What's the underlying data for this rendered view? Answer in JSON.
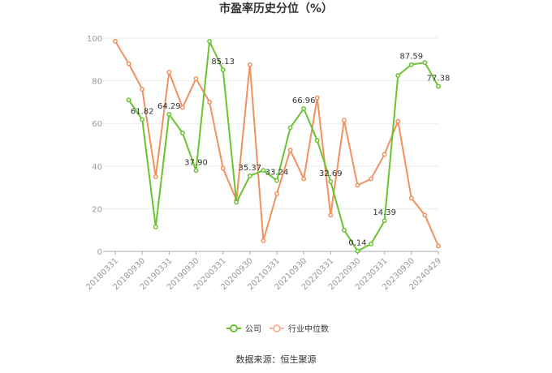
{
  "chart_data": {
    "type": "line",
    "title": "市盈率历史分位（%）",
    "xlabel": "",
    "ylabel": "",
    "ylim": [
      0,
      100
    ],
    "yticks": [
      0,
      20,
      40,
      60,
      80,
      100
    ],
    "grid": "horizontal",
    "legend_position": "bottom-center",
    "x_tick_labels": [
      "20180331",
      "20180930",
      "20190331",
      "20190930",
      "20200331",
      "20200930",
      "20210331",
      "20210930",
      "20220331",
      "20220930",
      "20230331",
      "20230930",
      "20240429"
    ],
    "x_tick_label_index": [
      0,
      2,
      4,
      6,
      8,
      10,
      12,
      14,
      16,
      18,
      20,
      22,
      24
    ],
    "x_count": 25,
    "series": [
      {
        "name": "公司",
        "color": "#6bc332",
        "start_index": 1,
        "values": [
          71.0,
          61.82,
          11.5,
          64.29,
          55.5,
          37.9,
          98.5,
          85.13,
          23.0,
          35.37,
          38.0,
          33.24,
          58.0,
          66.96,
          52.0,
          32.69,
          10.0,
          0.14,
          3.5,
          14.39,
          82.5,
          87.59,
          88.5,
          77.38
        ],
        "labels": {
          "2": "61.82",
          "4": "64.29",
          "6": "37.90",
          "8": "85.13",
          "10": "35.37",
          "12": "33.24",
          "14": "66.96",
          "16": "32.69",
          "18": "0.14",
          "20": "14.39",
          "22": "87.59",
          "24": "77.38"
        }
      },
      {
        "name": "行业中位数",
        "color": "#f0915f",
        "start_index": 0,
        "values": [
          98.5,
          88.0,
          76.0,
          35.0,
          84.0,
          67.5,
          81.0,
          70.0,
          39.0,
          24.0,
          87.5,
          5.0,
          27.0,
          47.5,
          34.0,
          72.0,
          17.0,
          61.5,
          31.0,
          34.0,
          45.5,
          61.0,
          25.0,
          17.0,
          2.5
        ]
      }
    ]
  },
  "legend": [
    {
      "name": "公司",
      "color": "#6bc332"
    },
    {
      "name": "行业中位数",
      "color": "#f5b89a"
    }
  ],
  "source_text": "数据来源：恒生聚源"
}
